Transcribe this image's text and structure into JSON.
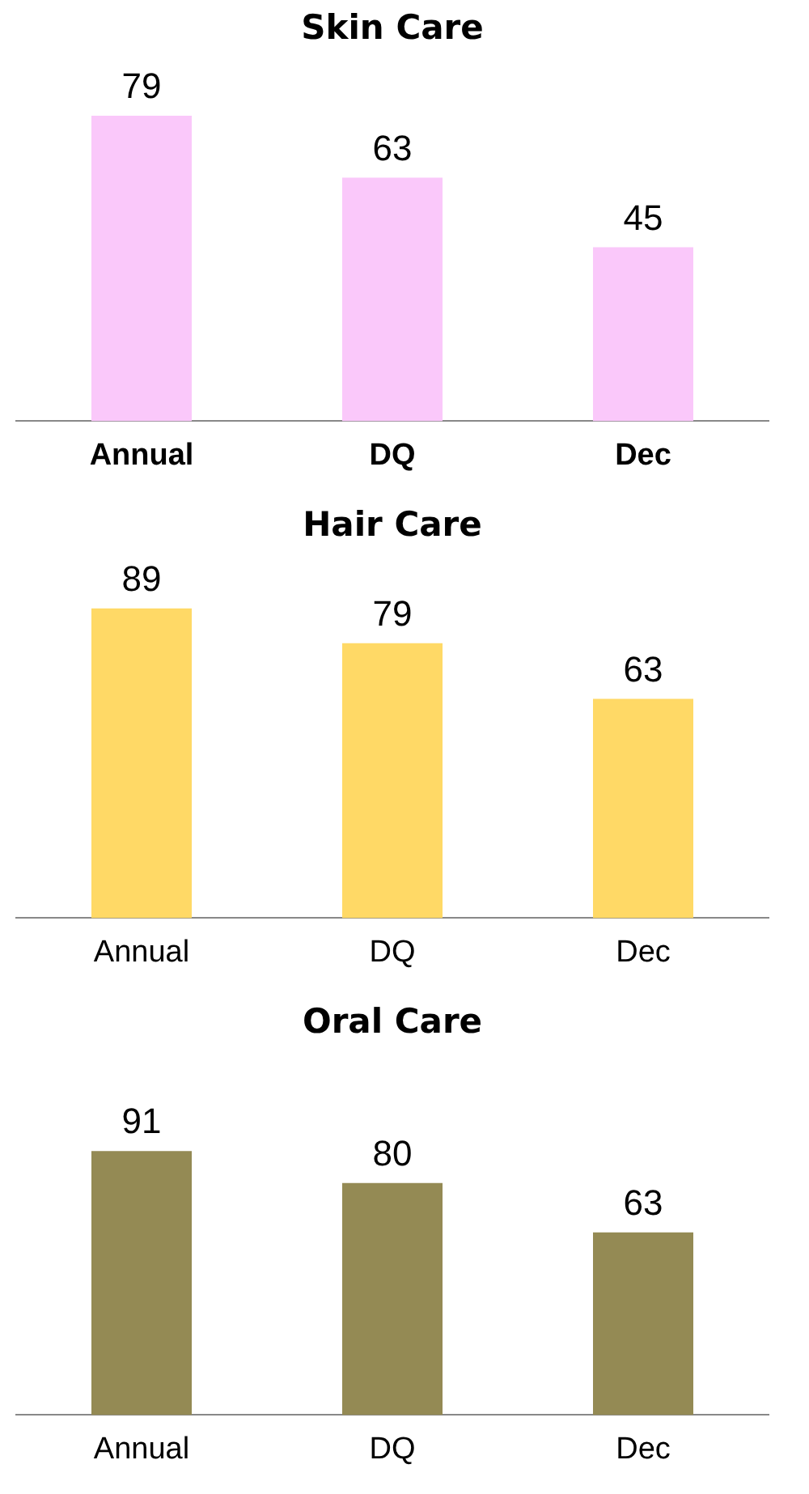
{
  "chart_data": [
    {
      "type": "bar",
      "title": "Skin Care",
      "categories": [
        "Annual",
        "DQ",
        "Dec"
      ],
      "values": [
        79,
        63,
        45
      ],
      "color": "#fac8fa",
      "data_labels": true
    },
    {
      "type": "bar",
      "title": "Hair Care",
      "categories": [
        "Annual",
        "DQ",
        "Dec"
      ],
      "values": [
        89,
        79,
        63
      ],
      "color": "#ffd966",
      "data_labels": true
    },
    {
      "type": "bar",
      "title": "Oral Care",
      "categories": [
        "Annual",
        "DQ",
        "Dec"
      ],
      "values": [
        91,
        80,
        63
      ],
      "color": "#948a54",
      "data_labels": true
    }
  ]
}
